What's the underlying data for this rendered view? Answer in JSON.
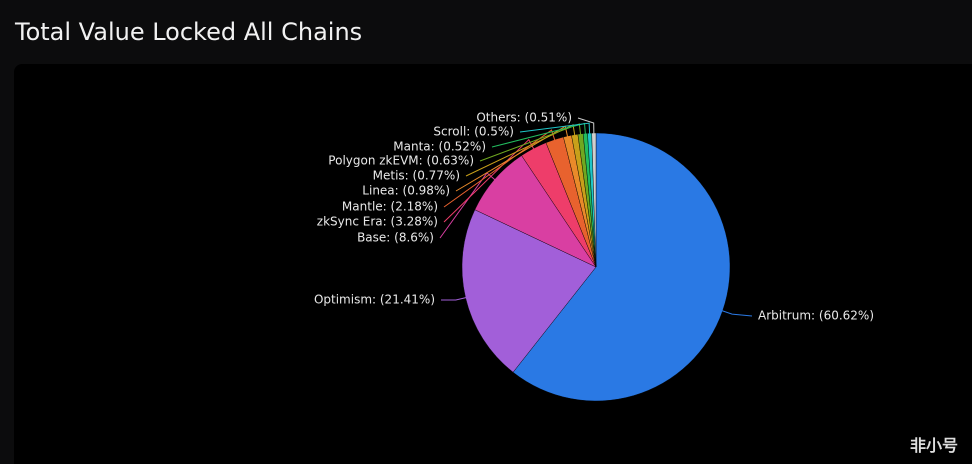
{
  "header": {
    "title": "Total Value Locked All Chains"
  },
  "chart_data": {
    "type": "pie",
    "values": [
      60.62,
      21.41,
      8.6,
      3.28,
      2.18,
      0.98,
      0.77,
      0.63,
      0.52,
      0.5,
      0.51
    ],
    "value_labels": [
      "Arbitrum: (60.62%)",
      "Optimism: (21.41%)",
      "Base: (8.6%)",
      "zkSync Era: (3.28%)",
      "Mantle: (2.18%)",
      "Linea: (0.98%)",
      "Metis: (0.77%)",
      "Polygon zkEVM: (0.63%)",
      "Manta: (0.52%)",
      "Scroll: (0.5%)",
      "Others: (0.51%)"
    ],
    "colors": [
      "#2a79e4",
      "#a25fd9",
      "#d93fa2",
      "#ee3d6a",
      "#e8622e",
      "#e98a2a",
      "#c8a01a",
      "#70a820",
      "#22bd5e",
      "#1fc6c8",
      "#cfcfcf"
    ]
  },
  "watermark": "非小号"
}
